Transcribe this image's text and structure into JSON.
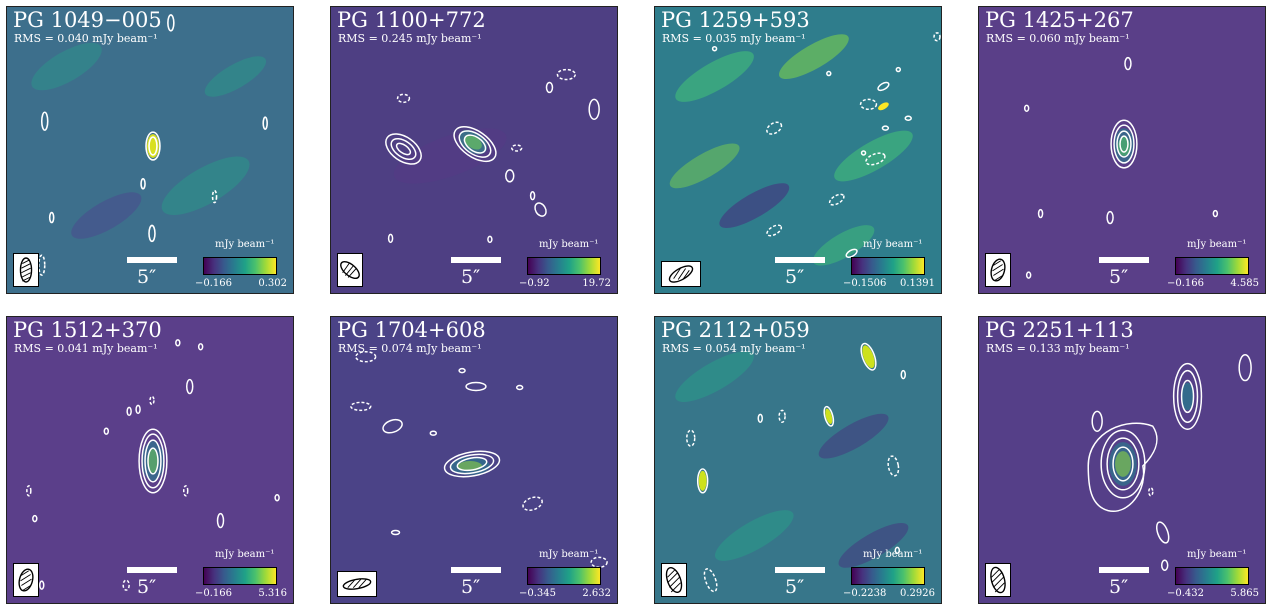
{
  "panels": [
    {
      "name": "PG 1049−005",
      "rms": "RMS = 0.040 mJy beam⁻¹",
      "scale": "5″",
      "cb_unit": "mJy beam⁻¹",
      "cb_min": "−0.166",
      "cb_max": "0.302"
    },
    {
      "name": "PG 1100+772",
      "rms": "RMS = 0.245 mJy beam⁻¹",
      "scale": "5″",
      "cb_unit": "mJy beam⁻¹",
      "cb_min": "−0.92",
      "cb_max": "19.72"
    },
    {
      "name": "PG 1259+593",
      "rms": "RMS = 0.035 mJy beam⁻¹",
      "scale": "5″",
      "cb_unit": "mJy beam⁻¹",
      "cb_min": "−0.1506",
      "cb_max": "0.1391"
    },
    {
      "name": "PG 1425+267",
      "rms": "RMS = 0.060 mJy beam⁻¹",
      "scale": "5″",
      "cb_unit": "mJy beam⁻¹",
      "cb_min": "−0.166",
      "cb_max": "4.585"
    },
    {
      "name": "PG 1512+370",
      "rms": "RMS = 0.041 mJy beam⁻¹",
      "scale": "5″",
      "cb_unit": "mJy beam⁻¹",
      "cb_min": "−0.166",
      "cb_max": "5.316"
    },
    {
      "name": "PG 1704+608",
      "rms": "RMS = 0.074 mJy beam⁻¹",
      "scale": "5″",
      "cb_unit": "mJy beam⁻¹",
      "cb_min": "−0.345",
      "cb_max": "2.632"
    },
    {
      "name": "PG 2112+059",
      "rms": "RMS = 0.054 mJy beam⁻¹",
      "scale": "5″",
      "cb_unit": "mJy beam⁻¹",
      "cb_min": "−0.2238",
      "cb_max": "0.2926"
    },
    {
      "name": "PG 2251+113",
      "rms": "RMS = 0.133 mJy beam⁻¹",
      "scale": "5″",
      "cb_unit": "mJy beam⁻¹",
      "cb_min": "−0.432",
      "cb_max": "5.865"
    }
  ],
  "colors": {
    "colormap": "viridis",
    "contour": "#ffffff",
    "panel_bg_low": "#5b3f8a",
    "panel_bg_teal": "#3e8a8b"
  }
}
